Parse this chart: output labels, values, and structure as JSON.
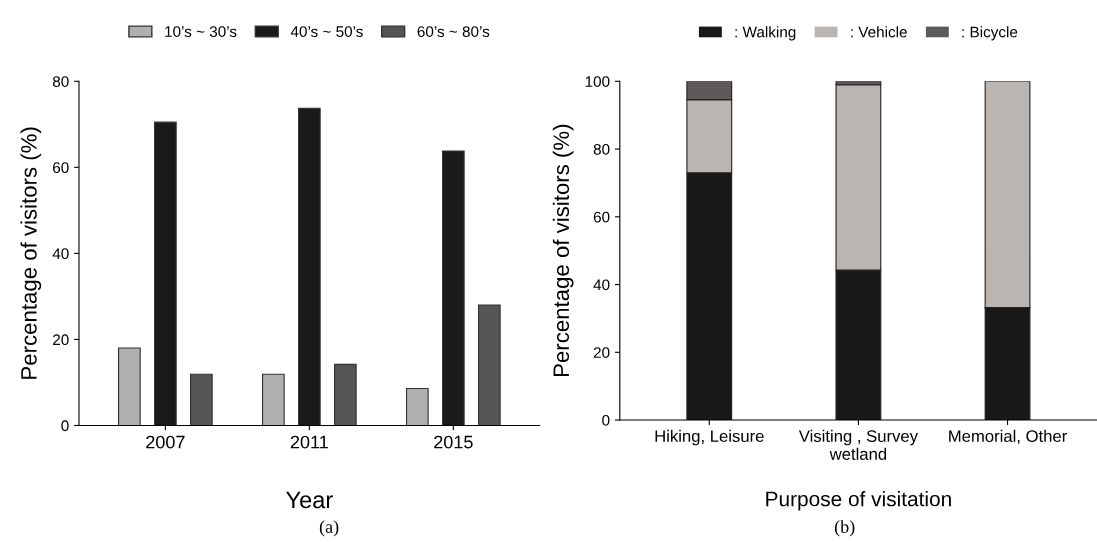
{
  "chart_data": [
    {
      "type": "bar",
      "categories": [
        "2007",
        "2011",
        "2015"
      ],
      "xlabel": "Year",
      "ylabel": "Percentage of visitors (%)",
      "ylim": [
        0,
        80
      ],
      "yticks": [
        0,
        20,
        40,
        60,
        80
      ],
      "legend": "top",
      "grid": false,
      "annotations": [
        "(a)"
      ],
      "series": [
        {
          "name": "10’s ~ 30’s",
          "color": "#b0b0b0",
          "values": [
            18.0,
            11.9,
            8.6
          ]
        },
        {
          "name": "40’s ~ 50’s",
          "color": "#1a1a1a",
          "values": [
            70.5,
            73.7,
            63.8
          ]
        },
        {
          "name": "60’s ~ 80’s",
          "color": "#555555",
          "values": [
            11.9,
            14.2,
            28.0
          ]
        }
      ]
    },
    {
      "type": "bar",
      "stacked": true,
      "categories": [
        "Hiking, Leisure",
        "Visiting , Survey\nwetland",
        "Memorial, Other"
      ],
      "xlabel": "Purpose of visitation",
      "ylabel": "Percentage of visitors (%)",
      "ylim": [
        0,
        100
      ],
      "yticks": [
        0,
        20,
        40,
        60,
        80,
        100
      ],
      "legend": "top",
      "grid": false,
      "annotations": [
        "(b)"
      ],
      "series": [
        {
          "name": ": Walking",
          "color": "#1a1816",
          "values": [
            73.0,
            44.3,
            33.2
          ]
        },
        {
          "name": ": Vehicle",
          "color": "#bbb5b2",
          "values": [
            21.6,
            54.7,
            66.8
          ]
        },
        {
          "name": ": Bicycle",
          "color": "#5e5a5a",
          "values": [
            5.4,
            1.0,
            0
          ]
        }
      ]
    }
  ]
}
